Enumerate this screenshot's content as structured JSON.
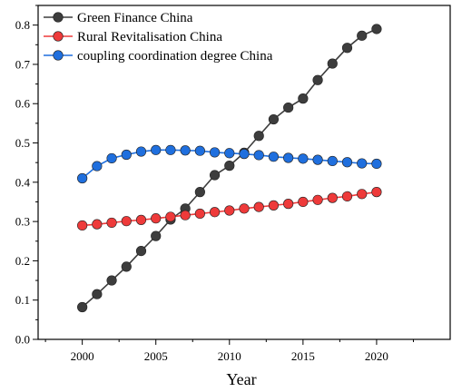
{
  "chart_data": {
    "type": "line",
    "title": "",
    "xlabel": "Year",
    "ylabel": "",
    "xlim": [
      1997,
      2025
    ],
    "ylim": [
      0,
      0.85
    ],
    "x_ticks": [
      2000,
      2005,
      2010,
      2015,
      2020
    ],
    "y_ticks": [
      0.0,
      0.1,
      0.2,
      0.3,
      0.4,
      0.5,
      0.6,
      0.7,
      0.8
    ],
    "legend_position": "top-left",
    "grid": false,
    "x": [
      2000,
      2001,
      2002,
      2003,
      2004,
      2005,
      2006,
      2007,
      2008,
      2009,
      2010,
      2011,
      2012,
      2013,
      2014,
      2015,
      2016,
      2017,
      2018,
      2019,
      2020
    ],
    "series": [
      {
        "name": "Green Finance China",
        "color": "#3d3d3d",
        "values": [
          0.082,
          0.115,
          0.15,
          0.185,
          0.225,
          0.263,
          0.305,
          0.333,
          0.375,
          0.418,
          0.442,
          0.475,
          0.518,
          0.56,
          0.59,
          0.613,
          0.66,
          0.702,
          0.742,
          0.773,
          0.79
        ]
      },
      {
        "name": "Rural Revitalisation China",
        "color": "#ee3a3a",
        "values": [
          0.29,
          0.293,
          0.297,
          0.301,
          0.304,
          0.308,
          0.312,
          0.316,
          0.32,
          0.324,
          0.328,
          0.333,
          0.337,
          0.341,
          0.345,
          0.35,
          0.355,
          0.36,
          0.364,
          0.37,
          0.375
        ]
      },
      {
        "name": "coupling coordination degree China",
        "color": "#1f6fde",
        "values": [
          0.41,
          0.441,
          0.461,
          0.47,
          0.478,
          0.482,
          0.482,
          0.481,
          0.48,
          0.476,
          0.474,
          0.472,
          0.469,
          0.465,
          0.462,
          0.46,
          0.457,
          0.454,
          0.451,
          0.448,
          0.447
        ]
      }
    ]
  }
}
